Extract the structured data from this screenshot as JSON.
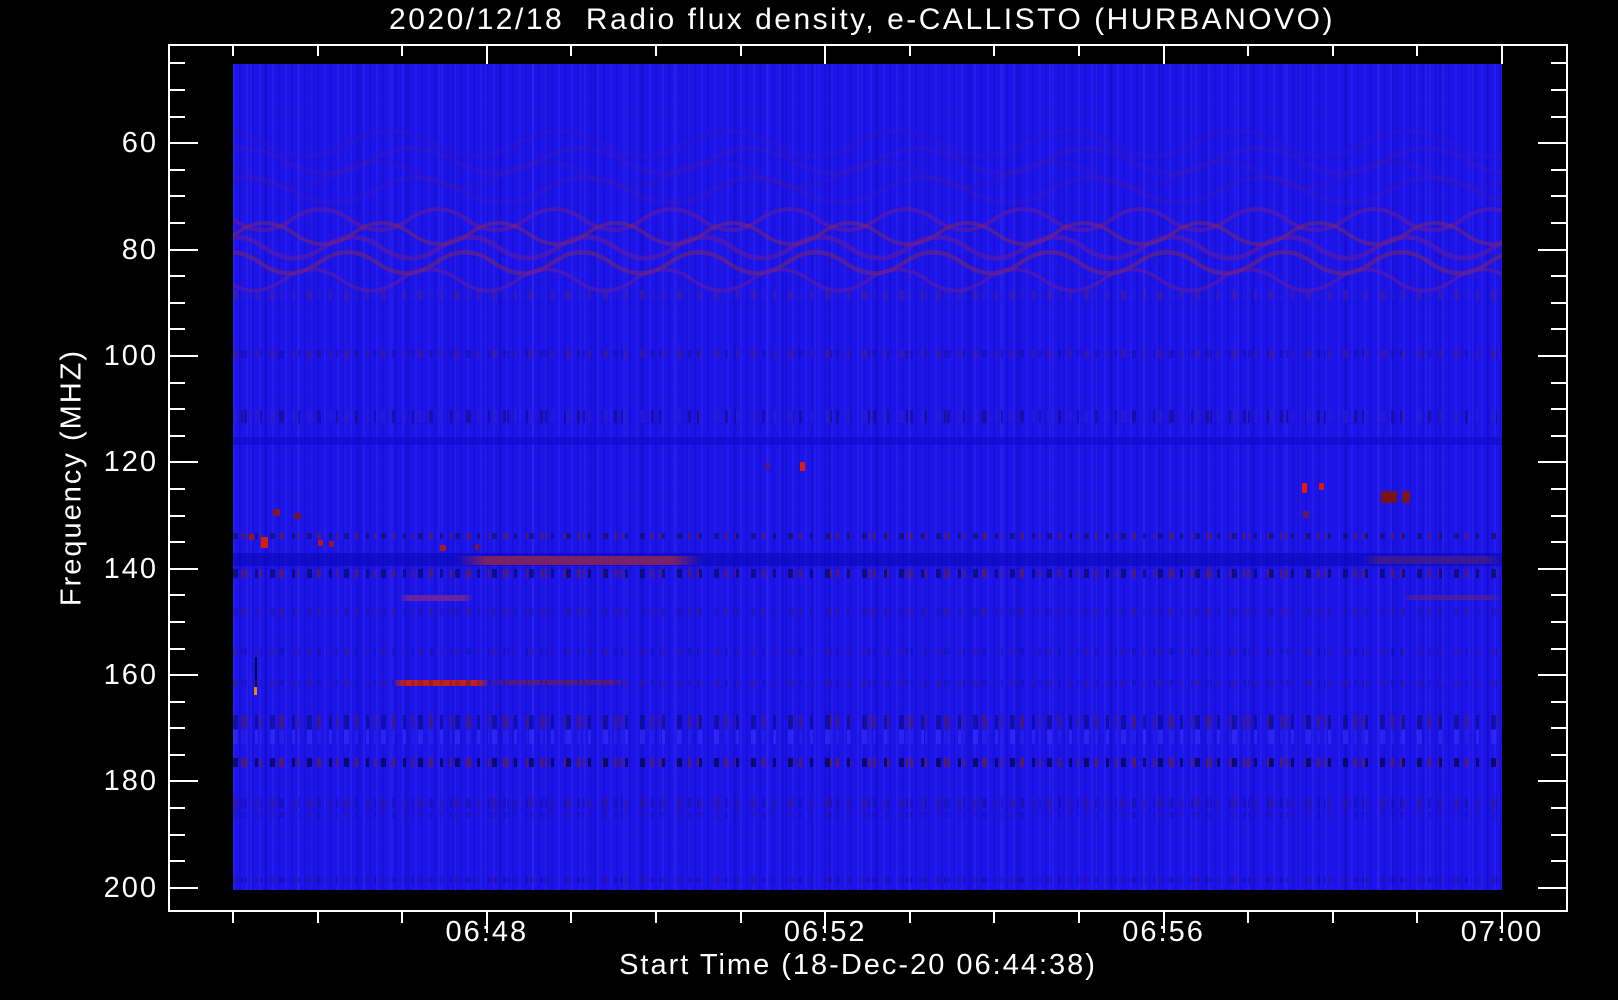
{
  "chart_data": {
    "type": "heatmap",
    "subtype": "radio-spectrogram",
    "title": "2020/12/18  Radio flux density, e-CALLISTO (HURBANOVO)",
    "x_axis": {
      "label": "Start Time (18-Dec-20 06:44:38)",
      "major_ticks": [
        "06:48",
        "06:52",
        "06:56",
        "07:00"
      ],
      "minor_step_minutes": 1,
      "data_start": "06:45:00",
      "data_end": "07:00:00"
    },
    "y_axis": {
      "label": "Frequency (MHZ)",
      "major_ticks": [
        60,
        80,
        100,
        120,
        140,
        160,
        180,
        200
      ],
      "minor_step_mhz": 5,
      "range_mhz": [
        45,
        200
      ],
      "inverted": true
    },
    "legend": "none",
    "grid": "off",
    "colors": {
      "background": "#000000",
      "axis": "#ffffff",
      "base_blue": "#1c14e8",
      "interference_purple": "#6e1c96",
      "burst_red": "#e31b07",
      "dark_red": "#8c1a12",
      "orange": "#e08818"
    },
    "features": [
      {
        "name": "upper-fringe-waves",
        "kind": "waves",
        "t0": "06:45:00",
        "t1": "07:00:00",
        "f0": 58.0,
        "f1": 71.5,
        "rows": 4,
        "period_s": 120,
        "amplitude_mhz": 2.6,
        "color": "#5a1a9a",
        "color2": "#6b2080",
        "opacity": 0.16
      },
      {
        "name": "interference-wave-band",
        "kind": "waves",
        "t0": "06:45:00",
        "t1": "07:00:00",
        "f0": 72.5,
        "f1": 87.5,
        "rows": 5,
        "period_s": 83,
        "amplitude_mhz": 2.2,
        "color": "#6e1c96",
        "color2": "#84285c",
        "opacity": 0.5
      },
      {
        "name": "wave-band-lower-speckle",
        "kind": "dashes",
        "t0": "06:45:00",
        "t1": "07:00:00",
        "f0": 87.5,
        "f1": 89.5,
        "color": "#5c2470",
        "color2": "#2a20c0",
        "opacity": 0.38
      },
      {
        "name": "speckle-line-99mhz",
        "kind": "dashes",
        "t0": "06:45:00",
        "t1": "07:00:00",
        "f0": 98.9,
        "f1": 100.4,
        "color": "#6b1f4a",
        "color2": "#151070",
        "opacity": 0.35
      },
      {
        "name": "speckle-line-111mhz",
        "kind": "dashes",
        "t0": "06:45:00",
        "t1": "07:00:00",
        "f0": 110.1,
        "f1": 112.6,
        "color": "#2a22c8",
        "color2": "#101060",
        "opacity": 0.5
      },
      {
        "name": "dark-stripe-116mhz",
        "kind": "band",
        "t0": "06:45:00",
        "t1": "07:00:00",
        "f0": 115.2,
        "f1": 116.8,
        "color": "#0d0ac2",
        "opacity": 0.55
      },
      {
        "name": "burst-dot-faint-121mhz",
        "kind": "dot",
        "t": "06:51:19",
        "f": 120.7,
        "dt_s": 4,
        "df_mhz": 1.2,
        "color": "#5a1880",
        "opacity": 0.9
      },
      {
        "name": "burst-dot-121mhz",
        "kind": "dot",
        "t": "06:51:44",
        "f": 120.7,
        "dt_s": 4,
        "df_mhz": 1.7,
        "color": "#e31b07",
        "opacity": 1
      },
      {
        "name": "burst-dot-125mhz-a",
        "kind": "dot",
        "t": "06:57:40",
        "f": 124.8,
        "dt_s": 4,
        "df_mhz": 1.8,
        "color": "#e31b07",
        "opacity": 1
      },
      {
        "name": "burst-dot-125mhz-b",
        "kind": "dot",
        "t": "06:57:52",
        "f": 124.6,
        "dt_s": 3,
        "df_mhz": 1.4,
        "color": "#d81a06",
        "opacity": 1
      },
      {
        "name": "dark-red-cluster-126mhz-a",
        "kind": "dot",
        "t": "06:58:40",
        "f": 126.5,
        "dt_s": 11,
        "df_mhz": 2.2,
        "color": "#7a150f",
        "opacity": 0.95
      },
      {
        "name": "dark-red-cluster-126mhz-b",
        "kind": "dot",
        "t": "06:58:52",
        "f": 126.5,
        "dt_s": 6,
        "df_mhz": 2.2,
        "color": "#84180e",
        "opacity": 0.9
      },
      {
        "name": "dark-red-dot-130mhz-a",
        "kind": "dot",
        "t": "06:45:31",
        "f": 129.5,
        "dt_s": 5,
        "df_mhz": 1.3,
        "color": "#8c1a12",
        "opacity": 0.9
      },
      {
        "name": "dark-red-dot-130mhz-b",
        "kind": "dot",
        "t": "06:45:46",
        "f": 130.1,
        "dt_s": 5,
        "df_mhz": 1.3,
        "color": "#7e1812",
        "opacity": 0.85
      },
      {
        "name": "dark-red-dot-130mhz-right",
        "kind": "dot",
        "t": "06:57:41",
        "f": 129.8,
        "dt_s": 4,
        "df_mhz": 1.2,
        "color": "#6e1d35",
        "opacity": 0.8
      },
      {
        "name": "speckle-line-134mhz",
        "kind": "dashes",
        "t0": "06:45:00",
        "t1": "07:00:00",
        "f0": 133.2,
        "f1": 134.4,
        "color": "#101060",
        "color2": "#6e1d35",
        "opacity": 0.6
      },
      {
        "name": "burst-dot-134mhz",
        "kind": "dot",
        "t": "06:45:13",
        "f": 134.0,
        "dt_s": 4,
        "df_mhz": 1.2,
        "color": "#a01810",
        "opacity": 0.9
      },
      {
        "name": "burst-blob-135mhz",
        "kind": "dot",
        "t": "06:45:22",
        "f": 135.1,
        "dt_s": 5,
        "df_mhz": 2.0,
        "color": "#d91c06",
        "opacity": 1
      },
      {
        "name": "burst-dot-135mhz-b",
        "kind": "dot",
        "t": "06:46:02",
        "f": 135.2,
        "dt_s": 4,
        "df_mhz": 1.2,
        "color": "#c41a08",
        "opacity": 0.9
      },
      {
        "name": "burst-dot-135mhz-c",
        "kind": "dot",
        "t": "06:46:10",
        "f": 135.3,
        "dt_s": 4,
        "df_mhz": 1.1,
        "color": "#a81a10",
        "opacity": 0.85
      },
      {
        "name": "burst-dot-136mhz-d",
        "kind": "dot",
        "t": "06:47:29",
        "f": 136.1,
        "dt_s": 4,
        "df_mhz": 1.2,
        "color": "#b81a0a",
        "opacity": 0.9
      },
      {
        "name": "burst-dot-136mhz-e",
        "kind": "dot",
        "t": "06:47:53",
        "f": 135.9,
        "dt_s": 3,
        "df_mhz": 1.0,
        "color": "#8c1a12",
        "opacity": 0.8
      },
      {
        "name": "dark-band-138mhz",
        "kind": "band",
        "t0": "06:45:00",
        "t1": "07:00:00",
        "f0": 137.0,
        "f1": 139.5,
        "color": "#0906b4",
        "opacity": 0.6
      },
      {
        "name": "drift-streak-138mhz",
        "kind": "streak",
        "t0": "06:47:39",
        "t1": "06:50:33",
        "f0": 137.5,
        "f1": 139.2,
        "color": "#8c2556",
        "opacity": 0.85
      },
      {
        "name": "drift-streak-138mhz-right",
        "kind": "streak",
        "t0": "06:58:21",
        "t1": "07:00:00",
        "f0": 137.5,
        "f1": 139.0,
        "color": "#5c2470",
        "opacity": 0.55
      },
      {
        "name": "speckle-line-141mhz",
        "kind": "dashes",
        "t0": "06:45:00",
        "t1": "07:00:00",
        "f0": 140.0,
        "f1": 141.7,
        "color": "#0a0a50",
        "color2": "#6e1d35",
        "opacity": 0.65
      },
      {
        "name": "streak-145mhz",
        "kind": "streak",
        "t0": "06:46:58",
        "t1": "06:47:50",
        "f0": 144.9,
        "f1": 146.0,
        "color": "#7e2a8a",
        "opacity": 0.75
      },
      {
        "name": "streak-145mhz-right",
        "kind": "streak",
        "t0": "06:58:48",
        "t1": "07:00:00",
        "f0": 144.9,
        "f1": 145.9,
        "color": "#6b2370",
        "opacity": 0.55
      },
      {
        "name": "speckle-line-148mhz",
        "kind": "dashes",
        "t0": "06:45:00",
        "t1": "07:00:00",
        "f0": 147.4,
        "f1": 148.7,
        "color": "#201890",
        "color2": "#551c50",
        "opacity": 0.4
      },
      {
        "name": "speckle-line-155mhz",
        "kind": "dashes",
        "t0": "06:45:00",
        "t1": "07:00:00",
        "f0": 154.9,
        "f1": 156.2,
        "color": "#4a1860",
        "color2": "#151070",
        "opacity": 0.3
      },
      {
        "name": "dark-vdash-157mhz",
        "kind": "vdash",
        "t": "06:45:16",
        "f0": 156.6,
        "f1": 162.2,
        "dt_s": 1.5,
        "color": "#05052a",
        "opacity": 0.9
      },
      {
        "name": "orange-dash-163mhz",
        "kind": "vdash",
        "t": "06:45:16",
        "f0": 162.2,
        "f1": 163.7,
        "dt_s": 2,
        "color": "#e08818",
        "opacity": 1
      },
      {
        "name": "burst-streak-162mhz",
        "kind": "streak",
        "t0": "06:46:53",
        "t1": "06:48:02",
        "f0": 160.9,
        "f1": 162.0,
        "color": "#d42208",
        "opacity": 0.9
      },
      {
        "name": "burst-streak-162mhz-tail",
        "kind": "streak",
        "t0": "06:48:02",
        "t1": "06:49:41",
        "f0": 161.0,
        "f1": 161.9,
        "color": "#8c2030",
        "opacity": 0.5
      },
      {
        "name": "speckle-line-162mhz",
        "kind": "dashes",
        "t0": "06:45:00",
        "t1": "07:00:00",
        "f0": 161.0,
        "f1": 162.0,
        "color": "#5c1c40",
        "color2": "#18127a",
        "opacity": 0.3
      },
      {
        "name": "speckle-line-168mhz",
        "kind": "dashes",
        "t0": "06:45:00",
        "t1": "07:00:00",
        "f0": 167.5,
        "f1": 170.1,
        "color": "#0c0c70",
        "color2": "#5c1c40",
        "opacity": 0.55
      },
      {
        "name": "bright-band-171mhz",
        "kind": "dashes",
        "t0": "06:45:00",
        "t1": "07:00:00",
        "f0": 170.3,
        "f1": 172.9,
        "color": "#3a35ff",
        "color2": "#2a28f0",
        "opacity": 0.5
      },
      {
        "name": "speckle-line-176mhz",
        "kind": "dashes",
        "t0": "06:45:00",
        "t1": "07:00:00",
        "f0": 175.6,
        "f1": 177.3,
        "color": "#050540",
        "color2": "#6e1d35",
        "opacity": 0.7
      },
      {
        "name": "speckle-line-184mhz",
        "kind": "dashes",
        "t0": "06:45:00",
        "t1": "07:00:00",
        "f0": 183.1,
        "f1": 184.9,
        "color": "#4a1850",
        "color2": "#14107a",
        "opacity": 0.35
      },
      {
        "name": "speckle-line-186mhz",
        "kind": "dashes",
        "t0": "06:45:00",
        "t1": "07:00:00",
        "f0": 185.7,
        "f1": 186.8,
        "color": "#3a1560",
        "color2": "#14107a",
        "opacity": 0.25
      },
      {
        "name": "speckle-line-198mhz",
        "kind": "dashes",
        "t0": "06:45:00",
        "t1": "07:00:00",
        "f0": 197.9,
        "f1": 199.0,
        "color": "#3a1560",
        "color2": "#101060",
        "opacity": 0.3
      }
    ]
  }
}
